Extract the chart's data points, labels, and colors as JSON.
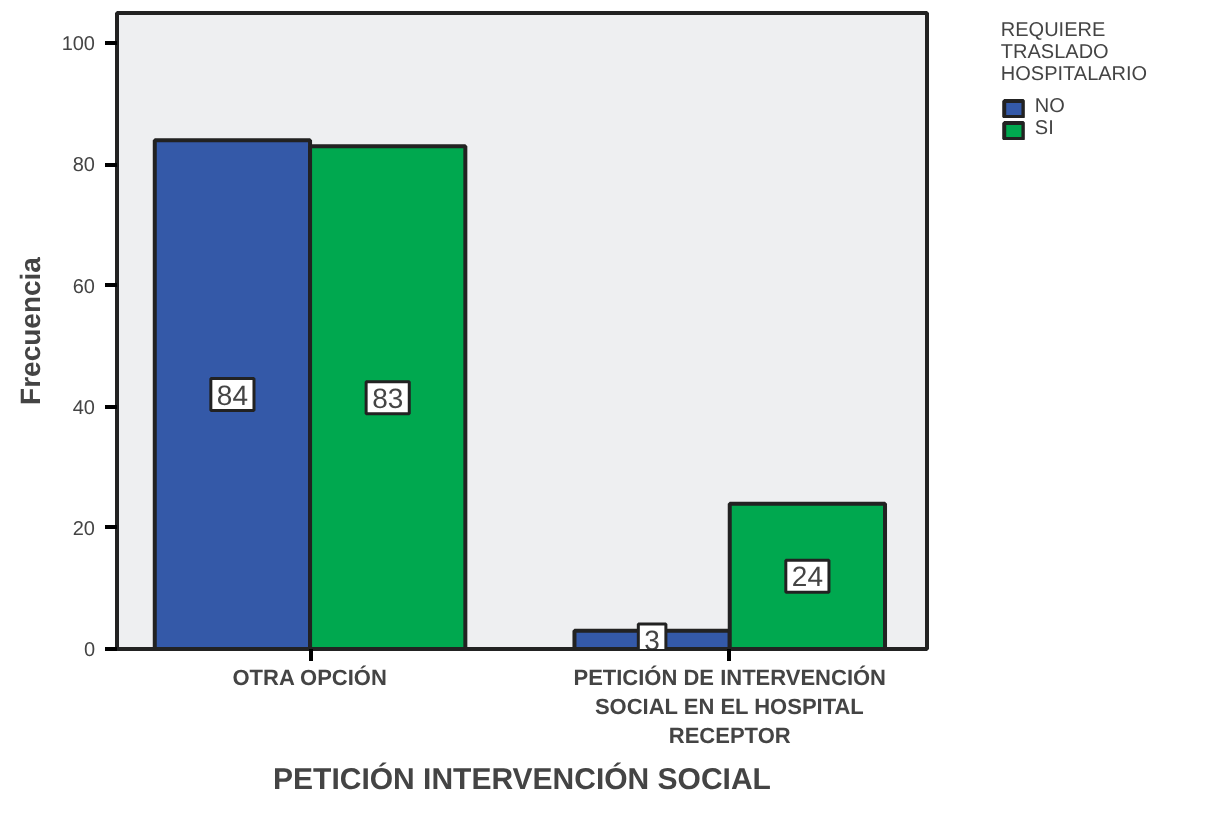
{
  "chart_data": {
    "type": "bar",
    "xlabel": "PETICIÓN INTERVENCIÓN SOCIAL",
    "ylabel": "Frecuencia",
    "legend_title": "REQUIERE TRASLADO HOSPITALARIO",
    "categories": [
      "OTRA OPCIÓN",
      "PETICIÓN DE INTERVENCIÓN SOCIAL EN EL HOSPITAL RECEPTOR"
    ],
    "series": [
      {
        "name": "NO",
        "color": "#3459a8",
        "values": [
          84,
          3
        ]
      },
      {
        "name": "SI",
        "color": "#00a84f",
        "values": [
          83,
          24
        ]
      }
    ],
    "ylim": [
      0,
      105
    ],
    "yticks": [
      0,
      20,
      40,
      60,
      80,
      100
    ],
    "grid": false,
    "legend": "right",
    "data_labels": true
  }
}
